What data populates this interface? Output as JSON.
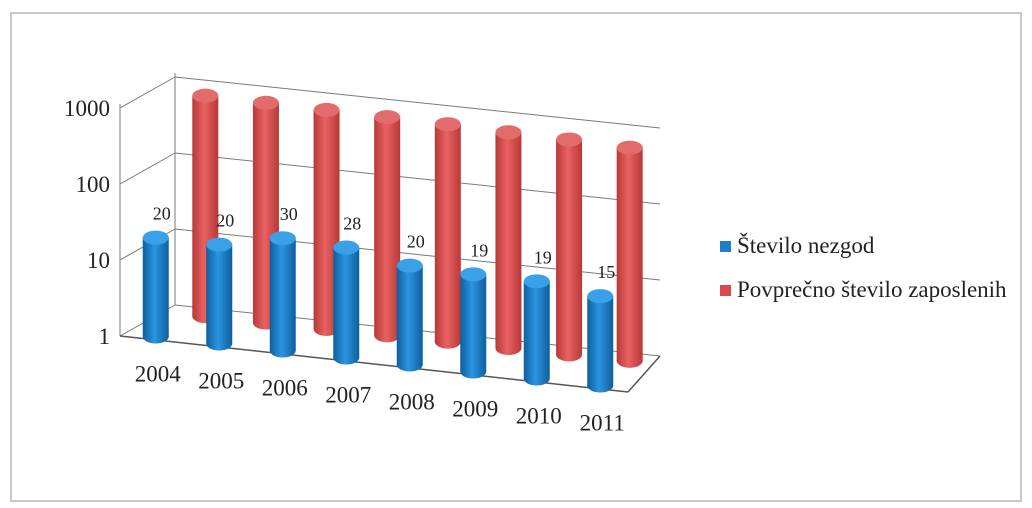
{
  "chart_data": {
    "type": "bar",
    "style": "3d-cylinder",
    "categories": [
      "2004",
      "2005",
      "2006",
      "2007",
      "2008",
      "2009",
      "2010",
      "2011"
    ],
    "yscale": "log",
    "ylim": [
      1,
      1000
    ],
    "yticks": [
      "1",
      "10",
      "100",
      "1000"
    ],
    "legend_position": "right",
    "series": [
      {
        "name": "Število nezgod",
        "values": [
          20,
          20,
          30,
          28,
          20,
          19,
          19,
          15
        ],
        "labels": [
          "20",
          "20",
          "30",
          "28",
          "20",
          "19",
          "19",
          "15"
        ],
        "color": "#1e7ec8"
      },
      {
        "name": "Povprečno število zaposlenih",
        "values": [
          900,
          880,
          860,
          840,
          820,
          780,
          760,
          720
        ],
        "color": "#d94a4a"
      }
    ]
  },
  "colors": {
    "blue": "#1e7ec8",
    "red": "#d94a4a",
    "border": "#c9c9c9"
  }
}
